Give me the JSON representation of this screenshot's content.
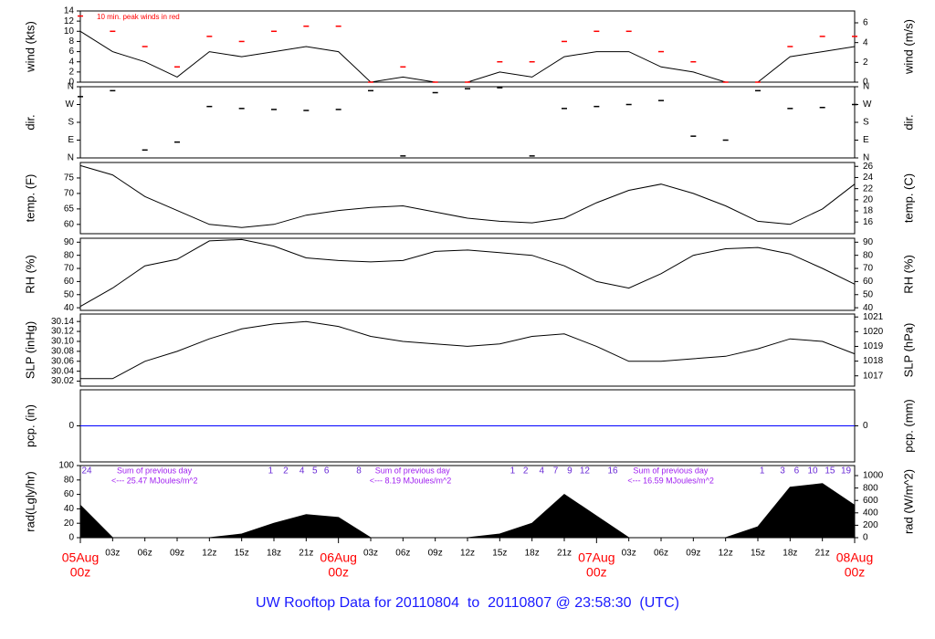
{
  "chart_data": [
    {
      "type": "line",
      "y_label": "wind (kts)",
      "y2_label": "wind (m/s)",
      "note": "10 min. peak winds in red",
      "xlim": [
        0,
        72
      ],
      "x": [
        0,
        3,
        6,
        9,
        12,
        15,
        18,
        21,
        24,
        27,
        30,
        33,
        36,
        39,
        42,
        45,
        48,
        51,
        54,
        57,
        60,
        63,
        66,
        69,
        72
      ],
      "ylim": [
        0,
        14
      ],
      "yticks": [
        0,
        2,
        4,
        6,
        8,
        10,
        12,
        14
      ],
      "y2lim": [
        0,
        7.2
      ],
      "y2ticks": [
        0,
        2,
        4,
        6
      ],
      "series": [
        {
          "name": "wind",
          "mode": "line",
          "color": "#000000",
          "values": [
            10,
            6,
            4,
            1,
            6,
            5,
            6,
            7,
            6,
            0,
            1,
            0,
            0,
            2,
            1,
            5,
            6,
            6,
            3,
            2,
            0,
            0,
            5,
            6,
            7
          ]
        },
        {
          "name": "peak",
          "mode": "points",
          "color": "#ff0000",
          "values": [
            13,
            10,
            7,
            3,
            9,
            8,
            10,
            11,
            11,
            0,
            3,
            0,
            0,
            4,
            4,
            8,
            10,
            10,
            6,
            4,
            0,
            0,
            7,
            9,
            9
          ]
        }
      ]
    },
    {
      "type": "scatter",
      "y_label": "dir.",
      "y2_label": "dir.",
      "xlim": [
        0,
        72
      ],
      "x": [
        0,
        3,
        6,
        9,
        12,
        15,
        18,
        21,
        24,
        27,
        30,
        33,
        36,
        39,
        42,
        45,
        48,
        51,
        54,
        57,
        60,
        63,
        66,
        69,
        72
      ],
      "ylim": [
        0,
        360
      ],
      "yticks": [
        {
          "value": 0,
          "label": "N"
        },
        {
          "value": 90,
          "label": "E"
        },
        {
          "value": 180,
          "label": "S"
        },
        {
          "value": 270,
          "label": "W"
        },
        {
          "value": 360,
          "label": "N"
        }
      ],
      "y2lim": [
        0,
        360
      ],
      "y2ticks": [
        {
          "value": 0,
          "label": "N"
        },
        {
          "value": 90,
          "label": "E"
        },
        {
          "value": 180,
          "label": "S"
        },
        {
          "value": 270,
          "label": "W"
        },
        {
          "value": 360,
          "label": "N"
        }
      ],
      "series": [
        {
          "name": "direction",
          "mode": "points",
          "color": "#000000",
          "values": [
            310,
            340,
            40,
            80,
            260,
            250,
            245,
            240,
            245,
            340,
            10,
            330,
            350,
            355,
            10,
            250,
            260,
            270,
            290,
            110,
            90,
            340,
            250,
            255,
            270
          ]
        }
      ]
    },
    {
      "type": "line",
      "y_label": "temp. (F)",
      "y2_label": "temp. (C)",
      "xlim": [
        0,
        72
      ],
      "x": [
        0,
        3,
        6,
        9,
        12,
        15,
        18,
        21,
        24,
        27,
        30,
        33,
        36,
        39,
        42,
        45,
        48,
        51,
        54,
        57,
        60,
        63,
        66,
        69,
        72
      ],
      "ylim": [
        57,
        80
      ],
      "yticks": [
        60,
        65,
        70,
        75
      ],
      "y2lim": [
        13.9,
        26.7
      ],
      "y2ticks": [
        16,
        18,
        20,
        22,
        24,
        26
      ],
      "series": [
        {
          "name": "temperature",
          "mode": "line",
          "color": "#000000",
          "values": [
            79,
            76,
            69,
            64.5,
            60,
            59,
            60,
            63,
            64.5,
            65.5,
            66,
            64,
            62,
            61,
            60.5,
            62,
            67,
            71,
            73,
            70,
            66,
            61,
            60,
            65,
            73
          ]
        }
      ]
    },
    {
      "type": "line",
      "y_label": "RH (%)",
      "y2_label": "RH (%)",
      "xlim": [
        0,
        72
      ],
      "x": [
        0,
        3,
        6,
        9,
        12,
        15,
        18,
        21,
        24,
        27,
        30,
        33,
        36,
        39,
        42,
        45,
        48,
        51,
        54,
        57,
        60,
        63,
        66,
        69,
        72
      ],
      "ylim": [
        38,
        93
      ],
      "yticks": [
        40,
        50,
        60,
        70,
        80,
        90
      ],
      "y2lim": [
        38,
        93
      ],
      "y2ticks": [
        40,
        50,
        60,
        70,
        80,
        90
      ],
      "series": [
        {
          "name": "humidity",
          "mode": "line",
          "color": "#000000",
          "values": [
            41,
            55,
            72,
            77,
            91,
            92,
            87,
            78,
            76,
            75,
            76,
            83,
            84,
            82,
            80,
            72,
            60,
            55,
            66,
            80,
            85,
            86,
            81,
            70,
            58
          ]
        }
      ]
    },
    {
      "type": "line",
      "y_label": "SLP (inHg)",
      "y2_label": "SLP (hPa)",
      "xlim": [
        0,
        72
      ],
      "x": [
        0,
        3,
        6,
        9,
        12,
        15,
        18,
        21,
        24,
        27,
        30,
        33,
        36,
        39,
        42,
        45,
        48,
        51,
        54,
        57,
        60,
        63,
        66,
        69,
        72
      ],
      "ylim": [
        30.01,
        30.155
      ],
      "yticks": [
        30.02,
        30.04,
        30.06,
        30.08,
        {
          "value": 30.1,
          "label": "30.10"
        },
        30.12,
        30.14
      ],
      "y2lim": [
        1016.3,
        1021.2
      ],
      "y2ticks": [
        1017,
        1018,
        1019,
        1020,
        1021
      ],
      "series": [
        {
          "name": "pressure",
          "mode": "line",
          "color": "#000000",
          "values": [
            30.025,
            30.025,
            30.06,
            30.08,
            30.105,
            30.125,
            30.135,
            30.14,
            30.13,
            30.11,
            30.1,
            30.095,
            30.09,
            30.095,
            30.11,
            30.115,
            30.09,
            30.06,
            30.06,
            30.065,
            30.07,
            30.085,
            30.105,
            30.1,
            30.075
          ]
        }
      ]
    },
    {
      "type": "line",
      "y_label": "pcp. (in)",
      "y2_label": "pcp. (mm)",
      "xlim": [
        0,
        72
      ],
      "x": [
        0,
        3,
        6,
        9,
        12,
        15,
        18,
        21,
        24,
        27,
        30,
        33,
        36,
        39,
        42,
        45,
        48,
        51,
        54,
        57,
        60,
        63,
        66,
        69,
        72
      ],
      "ylim": [
        -1,
        1
      ],
      "yticks": [
        0
      ],
      "y2lim": [
        -1,
        1
      ],
      "y2ticks": [
        0
      ],
      "series": [
        {
          "name": "precipitation",
          "mode": "line",
          "color": "#0000ff",
          "values": [
            0,
            0,
            0,
            0,
            0,
            0,
            0,
            0,
            0,
            0,
            0,
            0,
            0,
            0,
            0,
            0,
            0,
            0,
            0,
            0,
            0,
            0,
            0,
            0,
            0
          ]
        }
      ]
    },
    {
      "type": "area",
      "y_label": "rad(Lgly/hr)",
      "y2_label": "rad (W/m^2)",
      "xlim": [
        0,
        72
      ],
      "x": [
        0,
        3,
        6,
        9,
        12,
        15,
        18,
        21,
        24,
        27,
        30,
        33,
        36,
        39,
        42,
        45,
        48,
        51,
        54,
        57,
        60,
        63,
        66,
        69,
        72
      ],
      "ylim": [
        0,
        100
      ],
      "yticks": [
        0,
        20,
        40,
        60,
        80,
        100
      ],
      "y2lim": [
        0,
        1162
      ],
      "y2ticks": [
        0,
        200,
        400,
        600,
        800,
        1000
      ],
      "series": [
        {
          "name": "radiation",
          "mode": "area",
          "color": "#000000",
          "values": [
            45,
            0,
            0,
            0,
            0,
            5,
            20,
            32,
            28,
            0,
            0,
            0,
            0,
            5,
            20,
            60,
            30,
            0,
            0,
            0,
            0,
            15,
            70,
            75,
            45
          ]
        }
      ],
      "hour_labels": [
        {
          "value": 0.6,
          "label": "24"
        },
        {
          "value": 17.7,
          "label": "1"
        },
        {
          "value": 19.1,
          "label": "2"
        },
        {
          "value": 20.6,
          "label": "4"
        },
        {
          "value": 21.8,
          "label": "5"
        },
        {
          "value": 22.9,
          "label": "6"
        },
        {
          "value": 25.9,
          "label": "8"
        },
        {
          "value": 40.2,
          "label": "1"
        },
        {
          "value": 41.4,
          "label": "2"
        },
        {
          "value": 42.9,
          "label": "4"
        },
        {
          "value": 44.2,
          "label": "7"
        },
        {
          "value": 45.5,
          "label": "9"
        },
        {
          "value": 46.9,
          "label": "12"
        },
        {
          "value": 49.5,
          "label": "16"
        },
        {
          "value": 63.4,
          "label": "1"
        },
        {
          "value": 65.3,
          "label": "3"
        },
        {
          "value": 66.6,
          "label": "6"
        },
        {
          "value": 68.1,
          "label": "10"
        },
        {
          "value": 69.7,
          "label": "15"
        },
        {
          "value": 71.2,
          "label": "19"
        }
      ],
      "sums": [
        {
          "value": 3.4,
          "heading": "Sum of previous day",
          "text": "<--- 25.47 MJoules/m^2"
        },
        {
          "value": 27.4,
          "heading": "Sum of previous day",
          "text": "<--- 8.19 MJoules/m^2"
        },
        {
          "value": 51.4,
          "heading": "Sum of previous day",
          "text": "<--- 16.59 MJoules/m^2"
        }
      ],
      "xticks": [
        {
          "value": 3,
          "label": "03z"
        },
        {
          "value": 6,
          "label": "06z"
        },
        {
          "value": 9,
          "label": "09z"
        },
        {
          "value": 12,
          "label": "12z"
        },
        {
          "value": 15,
          "label": "15z"
        },
        {
          "value": 18,
          "label": "18z"
        },
        {
          "value": 21,
          "label": "21z"
        },
        {
          "value": 27,
          "label": "03z"
        },
        {
          "value": 30,
          "label": "06z"
        },
        {
          "value": 33,
          "label": "09z"
        },
        {
          "value": 36,
          "label": "12z"
        },
        {
          "value": 39,
          "label": "15z"
        },
        {
          "value": 42,
          "label": "18z"
        },
        {
          "value": 45,
          "label": "21z"
        },
        {
          "value": 51,
          "label": "03z"
        },
        {
          "value": 54,
          "label": "06z"
        },
        {
          "value": 57,
          "label": "09z"
        },
        {
          "value": 60,
          "label": "12z"
        },
        {
          "value": 63,
          "label": "15z"
        },
        {
          "value": 66,
          "label": "18z"
        },
        {
          "value": 69,
          "label": "21z"
        }
      ],
      "date_labels": [
        {
          "value": 0,
          "label": "05Aug",
          "sublabel": "00z"
        },
        {
          "value": 24,
          "label": "06Aug",
          "sublabel": "00z"
        },
        {
          "value": 48,
          "label": "07Aug",
          "sublabel": "00z"
        },
        {
          "value": 72,
          "label": "08Aug",
          "sublabel": "00z"
        }
      ],
      "title": "UW Rooftop Data for 20110804  to  20110807 @ 23:58:30  (UTC)"
    }
  ]
}
